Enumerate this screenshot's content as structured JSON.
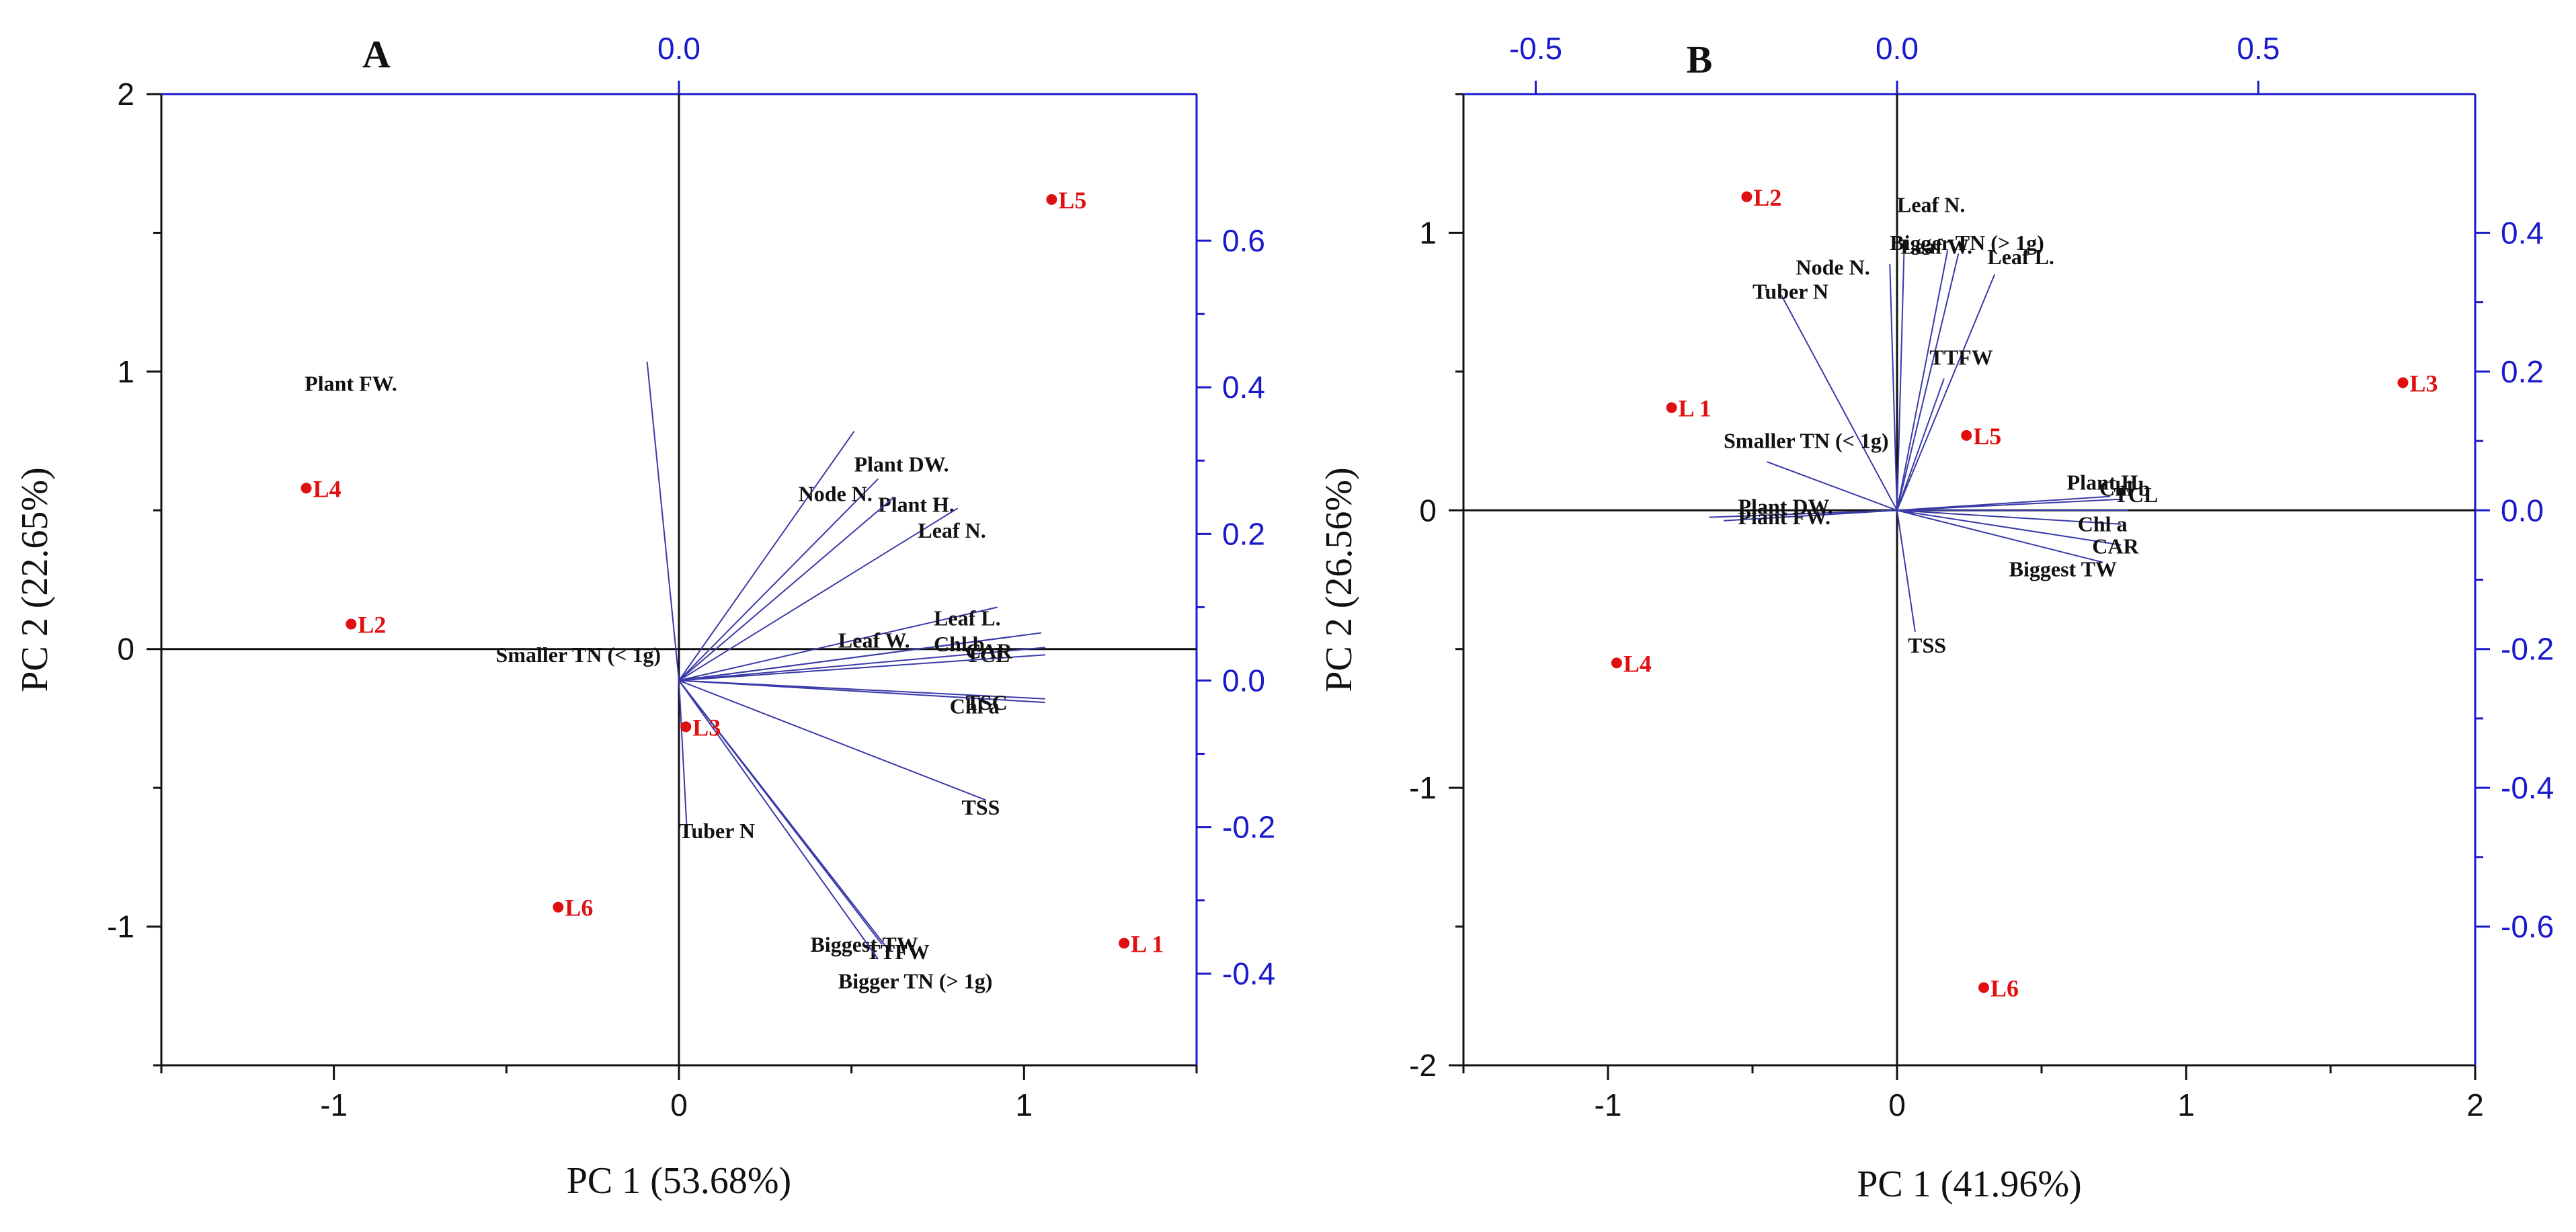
{
  "chart_data": [
    {
      "panel": "A",
      "type": "scatter",
      "subtype": "pca-biplot",
      "xlabel": "PC 1 (53.68%)",
      "ylabel": "PC 2 (22.65%)",
      "xlim": [
        -1.5,
        1.5
      ],
      "ylim": [
        -1.5,
        2.0
      ],
      "xticks": [
        -1,
        0,
        1
      ],
      "yticks": [
        -1,
        0,
        1,
        2
      ],
      "x2lim": [
        -0.65,
        0.65
      ],
      "x2ticks": [
        0.0
      ],
      "x2ticklabels": [
        "0.0"
      ],
      "y2lim": [
        -0.525,
        0.8
      ],
      "y2ticks": [
        -0.4,
        -0.2,
        0.0,
        0.2,
        0.4,
        0.6
      ],
      "y2ticklabels": [
        "-0.4",
        "-0.2",
        "0.0",
        "0.2",
        "0.4",
        "0.6"
      ],
      "scores": [
        {
          "name": "L5",
          "x": 1.08,
          "y": 1.62
        },
        {
          "name": "L4",
          "x": -1.08,
          "y": 0.58
        },
        {
          "name": "L2",
          "x": -0.95,
          "y": 0.09
        },
        {
          "name": "L3",
          "x": 0.02,
          "y": -0.28
        },
        {
          "name": "L6",
          "x": -0.35,
          "y": -0.93
        },
        {
          "name": "L 1",
          "x": 1.29,
          "y": -1.06
        }
      ],
      "loadings": [
        {
          "name": "Plant FW.",
          "x": -0.04,
          "y": 0.435,
          "label_dx": -0.43,
          "label_dy": -0.04
        },
        {
          "name": "Plant DW.",
          "x": 0.22,
          "y": 0.34,
          "label_dx": 0.0,
          "label_dy": -0.055
        },
        {
          "name": "Plant H.",
          "x": 0.25,
          "y": 0.275,
          "label_dx": 0.0,
          "label_dy": -0.045
        },
        {
          "name": "Node N.",
          "x": 0.27,
          "y": 0.25,
          "label_dx": -0.12,
          "label_dy": -0.005
        },
        {
          "name": "Leaf N.",
          "x": 0.35,
          "y": 0.235,
          "label_dx": -0.05,
          "label_dy": -0.04
        },
        {
          "name": "Leaf L.",
          "x": 0.4,
          "y": 0.1,
          "label_dx": -0.08,
          "label_dy": -0.025
        },
        {
          "name": "Leaf W.",
          "x": 0.42,
          "y": 0.06,
          "label_dx": -0.22,
          "label_dy": -0.015
        },
        {
          "name": "Chl b",
          "x": 0.455,
          "y": 0.065,
          "label_dx": -0.135,
          "label_dy": -0.025
        },
        {
          "name": "TCL",
          "x": 0.46,
          "y": 0.045,
          "label_dx": -0.1,
          "label_dy": -0.02
        },
        {
          "name": "CAR",
          "x": 0.46,
          "y": 0.035,
          "label_dx": -0.1,
          "label_dy": -0.005
        },
        {
          "name": "Chl a",
          "x": 0.46,
          "y": -0.025,
          "label_dx": -0.12,
          "label_dy": -0.02
        },
        {
          "name": "TSC",
          "x": 0.46,
          "y": -0.03,
          "label_dx": -0.1,
          "label_dy": -0.01
        },
        {
          "name": "TSS",
          "x": 0.385,
          "y": -0.163,
          "label_dx": -0.03,
          "label_dy": -0.02
        },
        {
          "name": "Tuber N",
          "x": 0.01,
          "y": -0.205,
          "label_dx": -0.01,
          "label_dy": -0.01
        },
        {
          "name": "Biggest TW",
          "x": 0.255,
          "y": -0.36,
          "label_dx": -0.09,
          "label_dy": -0.01
        },
        {
          "name": "TTFW",
          "x": 0.265,
          "y": -0.37,
          "label_dx": -0.03,
          "label_dy": -0.01
        },
        {
          "name": "Bigger TN (> 1g)",
          "x": 0.25,
          "y": -0.38,
          "label_dx": -0.05,
          "label_dy": -0.04
        },
        {
          "name": "Smaller TN (< 1g)",
          "x": 0.0,
          "y": 0.0,
          "label_dx": -0.23,
          "label_dy": 0.025
        }
      ]
    },
    {
      "panel": "B",
      "type": "scatter",
      "subtype": "pca-biplot",
      "xlabel": "PC 1 (41.96%)",
      "ylabel": "PC 2 (26.56%)",
      "xlim": [
        -1.5,
        2.0
      ],
      "ylim": [
        -2.0,
        1.5
      ],
      "xticks": [
        -1,
        0,
        1,
        2
      ],
      "yticks": [
        -2,
        -1,
        0,
        1
      ],
      "x2lim": [
        -0.6,
        0.8
      ],
      "x2ticks": [
        -0.5,
        0.0,
        0.5
      ],
      "x2ticklabels": [
        "-0.5",
        "0.0",
        "0.5"
      ],
      "y2lim": [
        -0.8,
        0.6
      ],
      "y2ticks": [
        -0.6,
        -0.4,
        -0.2,
        0.0,
        0.2,
        0.4
      ],
      "y2ticklabels": [
        "-0.6",
        "-0.4",
        "-0.2",
        "0.0",
        "0.2",
        "0.4"
      ],
      "scores": [
        {
          "name": "L2",
          "x": -0.52,
          "y": 1.13
        },
        {
          "name": "L 1",
          "x": -0.78,
          "y": 0.37
        },
        {
          "name": "L5",
          "x": 0.24,
          "y": 0.27
        },
        {
          "name": "L3",
          "x": 1.75,
          "y": 0.46
        },
        {
          "name": "L4",
          "x": -0.97,
          "y": -0.55
        },
        {
          "name": "L6",
          "x": 0.3,
          "y": -1.72
        }
      ],
      "loadings": [
        {
          "name": "Leaf N.",
          "x": 0.01,
          "y": 0.385,
          "label_dx": -0.01,
          "label_dy": 0.045
        },
        {
          "name": "Bigger TN (> 1g)",
          "x": 0.07,
          "y": 0.375,
          "label_dx": -0.08,
          "label_dy": 0.0
        },
        {
          "name": "Leaf W.",
          "x": 0.085,
          "y": 0.37,
          "label_dx": -0.08,
          "label_dy": 0.0
        },
        {
          "name": "Node N.",
          "x": -0.01,
          "y": 0.355,
          "label_dx": -0.13,
          "label_dy": -0.015
        },
        {
          "name": "Leaf L.",
          "x": 0.135,
          "y": 0.34,
          "label_dx": -0.01,
          "label_dy": 0.015
        },
        {
          "name": "Tuber N",
          "x": -0.16,
          "y": 0.31,
          "label_dx": -0.04,
          "label_dy": -0.005
        },
        {
          "name": "TTFW",
          "x": 0.065,
          "y": 0.19,
          "label_dx": -0.02,
          "label_dy": 0.02
        },
        {
          "name": "Smaller TN (< 1g)",
          "x": -0.18,
          "y": 0.07,
          "label_dx": -0.06,
          "label_dy": 0.02
        },
        {
          "name": "Plant DW.",
          "x": -0.26,
          "y": -0.01,
          "label_dx": 0.04,
          "label_dy": 0.005
        },
        {
          "name": "Plant FW.",
          "x": -0.24,
          "y": -0.015,
          "label_dx": 0.02,
          "label_dy": -0.005
        },
        {
          "name": "Plant H.",
          "x": 0.295,
          "y": 0.02,
          "label_dx": -0.06,
          "label_dy": 0.01
        },
        {
          "name": "Chl b",
          "x": 0.31,
          "y": 0.016,
          "label_dx": -0.03,
          "label_dy": 0.005
        },
        {
          "name": "TCL",
          "x": 0.32,
          "y": 0.0,
          "label_dx": -0.02,
          "label_dy": 0.012
        },
        {
          "name": "Chl a",
          "x": 0.31,
          "y": -0.02,
          "label_dx": -0.06,
          "label_dy": -0.01
        },
        {
          "name": "CAR",
          "x": 0.31,
          "y": -0.05,
          "label_dx": -0.04,
          "label_dy": -0.012
        },
        {
          "name": "Biggest TW",
          "x": 0.285,
          "y": -0.075,
          "label_dx": -0.13,
          "label_dy": -0.02
        },
        {
          "name": "TSS",
          "x": 0.025,
          "y": -0.175,
          "label_dx": -0.01,
          "label_dy": -0.03
        }
      ]
    }
  ]
}
